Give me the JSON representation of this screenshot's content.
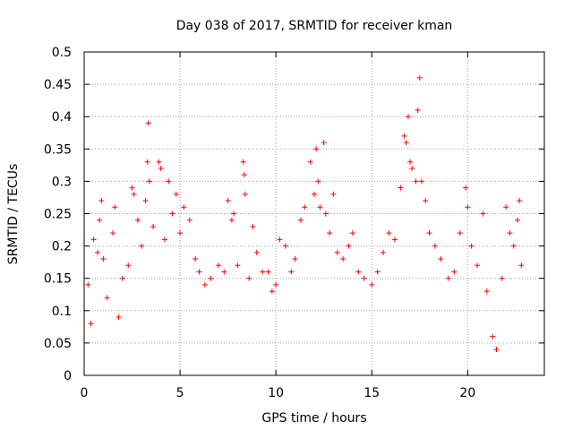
{
  "chart_data": {
    "type": "scatter",
    "title": "Day 038 of 2017, SRMTID for receiver kman",
    "xlabel": "GPS time / hours",
    "ylabel": "SRMTID / TECUs",
    "xlim": [
      0,
      24
    ],
    "ylim": [
      0,
      0.5
    ],
    "xticks": [
      0,
      5,
      10,
      15,
      20
    ],
    "xtick_labels": [
      "0",
      "5",
      "10",
      "15",
      "20"
    ],
    "yticks": [
      0,
      0.05,
      0.1,
      0.15,
      0.2,
      0.25,
      0.3,
      0.35,
      0.4,
      0.45,
      0.5
    ],
    "ytick_labels": [
      "0",
      "0.05",
      "0.1",
      "0.15",
      "0.2",
      "0.25",
      "0.3",
      "0.35",
      "0.4",
      "0.45",
      "0.5"
    ],
    "grid": true,
    "marker": "+",
    "color": "#ff0000",
    "series": [
      {
        "name": "SRMTID",
        "points": [
          [
            0.2,
            0.14
          ],
          [
            0.35,
            0.08
          ],
          [
            0.5,
            0.21
          ],
          [
            0.7,
            0.19
          ],
          [
            0.8,
            0.24
          ],
          [
            0.9,
            0.27
          ],
          [
            1.0,
            0.18
          ],
          [
            1.2,
            0.12
          ],
          [
            1.5,
            0.22
          ],
          [
            1.6,
            0.26
          ],
          [
            1.8,
            0.09
          ],
          [
            2.0,
            0.15
          ],
          [
            2.3,
            0.17
          ],
          [
            2.5,
            0.29
          ],
          [
            2.6,
            0.28
          ],
          [
            2.8,
            0.24
          ],
          [
            3.0,
            0.2
          ],
          [
            3.2,
            0.27
          ],
          [
            3.3,
            0.33
          ],
          [
            3.35,
            0.39
          ],
          [
            3.4,
            0.3
          ],
          [
            3.6,
            0.23
          ],
          [
            3.9,
            0.33
          ],
          [
            4.0,
            0.32
          ],
          [
            4.2,
            0.21
          ],
          [
            4.4,
            0.3
          ],
          [
            4.6,
            0.25
          ],
          [
            4.8,
            0.28
          ],
          [
            5.0,
            0.22
          ],
          [
            5.2,
            0.26
          ],
          [
            5.5,
            0.24
          ],
          [
            5.8,
            0.18
          ],
          [
            6.0,
            0.16
          ],
          [
            6.3,
            0.14
          ],
          [
            6.6,
            0.15
          ],
          [
            7.0,
            0.17
          ],
          [
            7.3,
            0.16
          ],
          [
            7.5,
            0.27
          ],
          [
            7.7,
            0.24
          ],
          [
            7.8,
            0.25
          ],
          [
            8.0,
            0.17
          ],
          [
            8.3,
            0.33
          ],
          [
            8.35,
            0.31
          ],
          [
            8.4,
            0.28
          ],
          [
            8.6,
            0.15
          ],
          [
            8.8,
            0.23
          ],
          [
            9.0,
            0.19
          ],
          [
            9.3,
            0.16
          ],
          [
            9.6,
            0.16
          ],
          [
            9.8,
            0.13
          ],
          [
            10.0,
            0.14
          ],
          [
            10.2,
            0.21
          ],
          [
            10.5,
            0.2
          ],
          [
            10.8,
            0.16
          ],
          [
            11.0,
            0.18
          ],
          [
            11.3,
            0.24
          ],
          [
            11.5,
            0.26
          ],
          [
            11.8,
            0.33
          ],
          [
            12.0,
            0.28
          ],
          [
            12.1,
            0.35
          ],
          [
            12.2,
            0.3
          ],
          [
            12.3,
            0.26
          ],
          [
            12.5,
            0.36
          ],
          [
            12.6,
            0.25
          ],
          [
            12.8,
            0.22
          ],
          [
            13.0,
            0.28
          ],
          [
            13.2,
            0.19
          ],
          [
            13.5,
            0.18
          ],
          [
            13.8,
            0.2
          ],
          [
            14.0,
            0.22
          ],
          [
            14.3,
            0.16
          ],
          [
            14.6,
            0.15
          ],
          [
            15.0,
            0.14
          ],
          [
            15.3,
            0.16
          ],
          [
            15.6,
            0.19
          ],
          [
            15.9,
            0.22
          ],
          [
            16.2,
            0.21
          ],
          [
            16.5,
            0.29
          ],
          [
            16.7,
            0.37
          ],
          [
            16.8,
            0.36
          ],
          [
            16.9,
            0.4
          ],
          [
            17.0,
            0.33
          ],
          [
            17.1,
            0.32
          ],
          [
            17.3,
            0.3
          ],
          [
            17.4,
            0.41
          ],
          [
            17.5,
            0.46
          ],
          [
            17.6,
            0.3
          ],
          [
            17.8,
            0.27
          ],
          [
            18.0,
            0.22
          ],
          [
            18.3,
            0.2
          ],
          [
            18.6,
            0.18
          ],
          [
            19.0,
            0.15
          ],
          [
            19.3,
            0.16
          ],
          [
            19.6,
            0.22
          ],
          [
            19.9,
            0.29
          ],
          [
            20.0,
            0.26
          ],
          [
            20.2,
            0.2
          ],
          [
            20.5,
            0.17
          ],
          [
            20.8,
            0.25
          ],
          [
            21.0,
            0.13
          ],
          [
            21.3,
            0.06
          ],
          [
            21.5,
            0.04
          ],
          [
            21.8,
            0.15
          ],
          [
            22.0,
            0.26
          ],
          [
            22.2,
            0.22
          ],
          [
            22.4,
            0.2
          ],
          [
            22.6,
            0.24
          ],
          [
            22.7,
            0.27
          ],
          [
            22.8,
            0.17
          ]
        ]
      }
    ]
  }
}
